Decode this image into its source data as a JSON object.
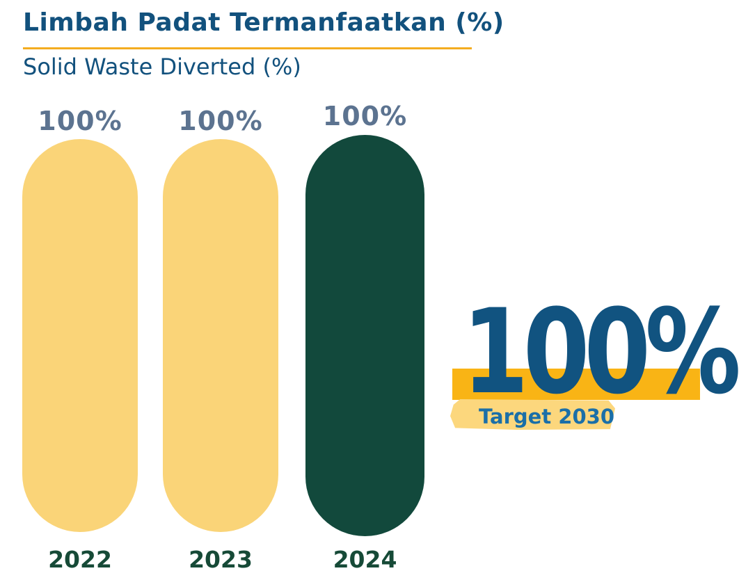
{
  "chart_data": {
    "type": "bar",
    "title": "Limbah Padat Termanfaatkan (%)",
    "subtitle": "Solid Waste Diverted (%)",
    "categories": [
      "2022",
      "2023",
      "2024"
    ],
    "values": [
      100,
      100,
      100
    ],
    "value_labels": [
      "100%",
      "100%",
      "100%"
    ],
    "unit": "%",
    "ylim": [
      0,
      100
    ],
    "grid": false,
    "legend": false,
    "bar_colors": [
      "#FAD478",
      "#FAD478",
      "#12493C"
    ],
    "highlighted_category": "2024",
    "annotation": "Target 2030 = 100%"
  },
  "target": {
    "value": "100%",
    "label": "Target 2030"
  },
  "colors": {
    "title_blue": "#12517D",
    "underline_gold": "#F4AC1F",
    "value_label_gray_blue": "#5C7390",
    "bar_yellow": "#FAD478",
    "bar_green": "#12493C",
    "year_label_green": "#164A37",
    "target_band_orange": "#F9B415",
    "target_label_band_yellow": "#FCD77D",
    "target_value_blue": "#115380",
    "target_label_blue": "#1B6FA8",
    "background": "#FFFFFF"
  }
}
